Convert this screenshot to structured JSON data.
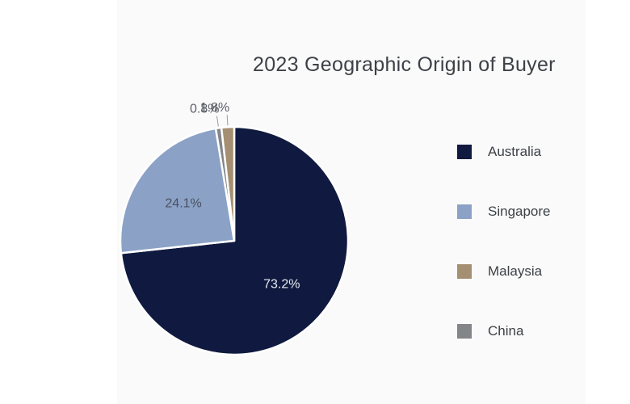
{
  "chart_data": {
    "type": "pie",
    "title": "2023 Geographic Origin of Buyer",
    "slices": [
      {
        "label": "Australia",
        "value": 73.2,
        "display": "73.2%",
        "color": "#101a40"
      },
      {
        "label": "Singapore",
        "value": 24.1,
        "display": "24.1%",
        "color": "#8ba2c6"
      },
      {
        "label": "China",
        "value": 0.8,
        "display": "0.8%",
        "color": "#838588"
      },
      {
        "label": "Malaysia",
        "value": 1.8,
        "display": "1.8%",
        "color": "#a58f72"
      }
    ],
    "legend": {
      "placement": "right",
      "entries": [
        {
          "label": "Australia",
          "color": "#101a40"
        },
        {
          "label": "Singapore",
          "color": "#8ba2c6"
        },
        {
          "label": "Malaysia",
          "color": "#a58f72"
        },
        {
          "label": "China",
          "color": "#838588"
        }
      ]
    },
    "label_colors": {
      "inside_dark": "#e9ebf1",
      "inside_light": "#4a5060",
      "outside": "#5c6068"
    }
  }
}
